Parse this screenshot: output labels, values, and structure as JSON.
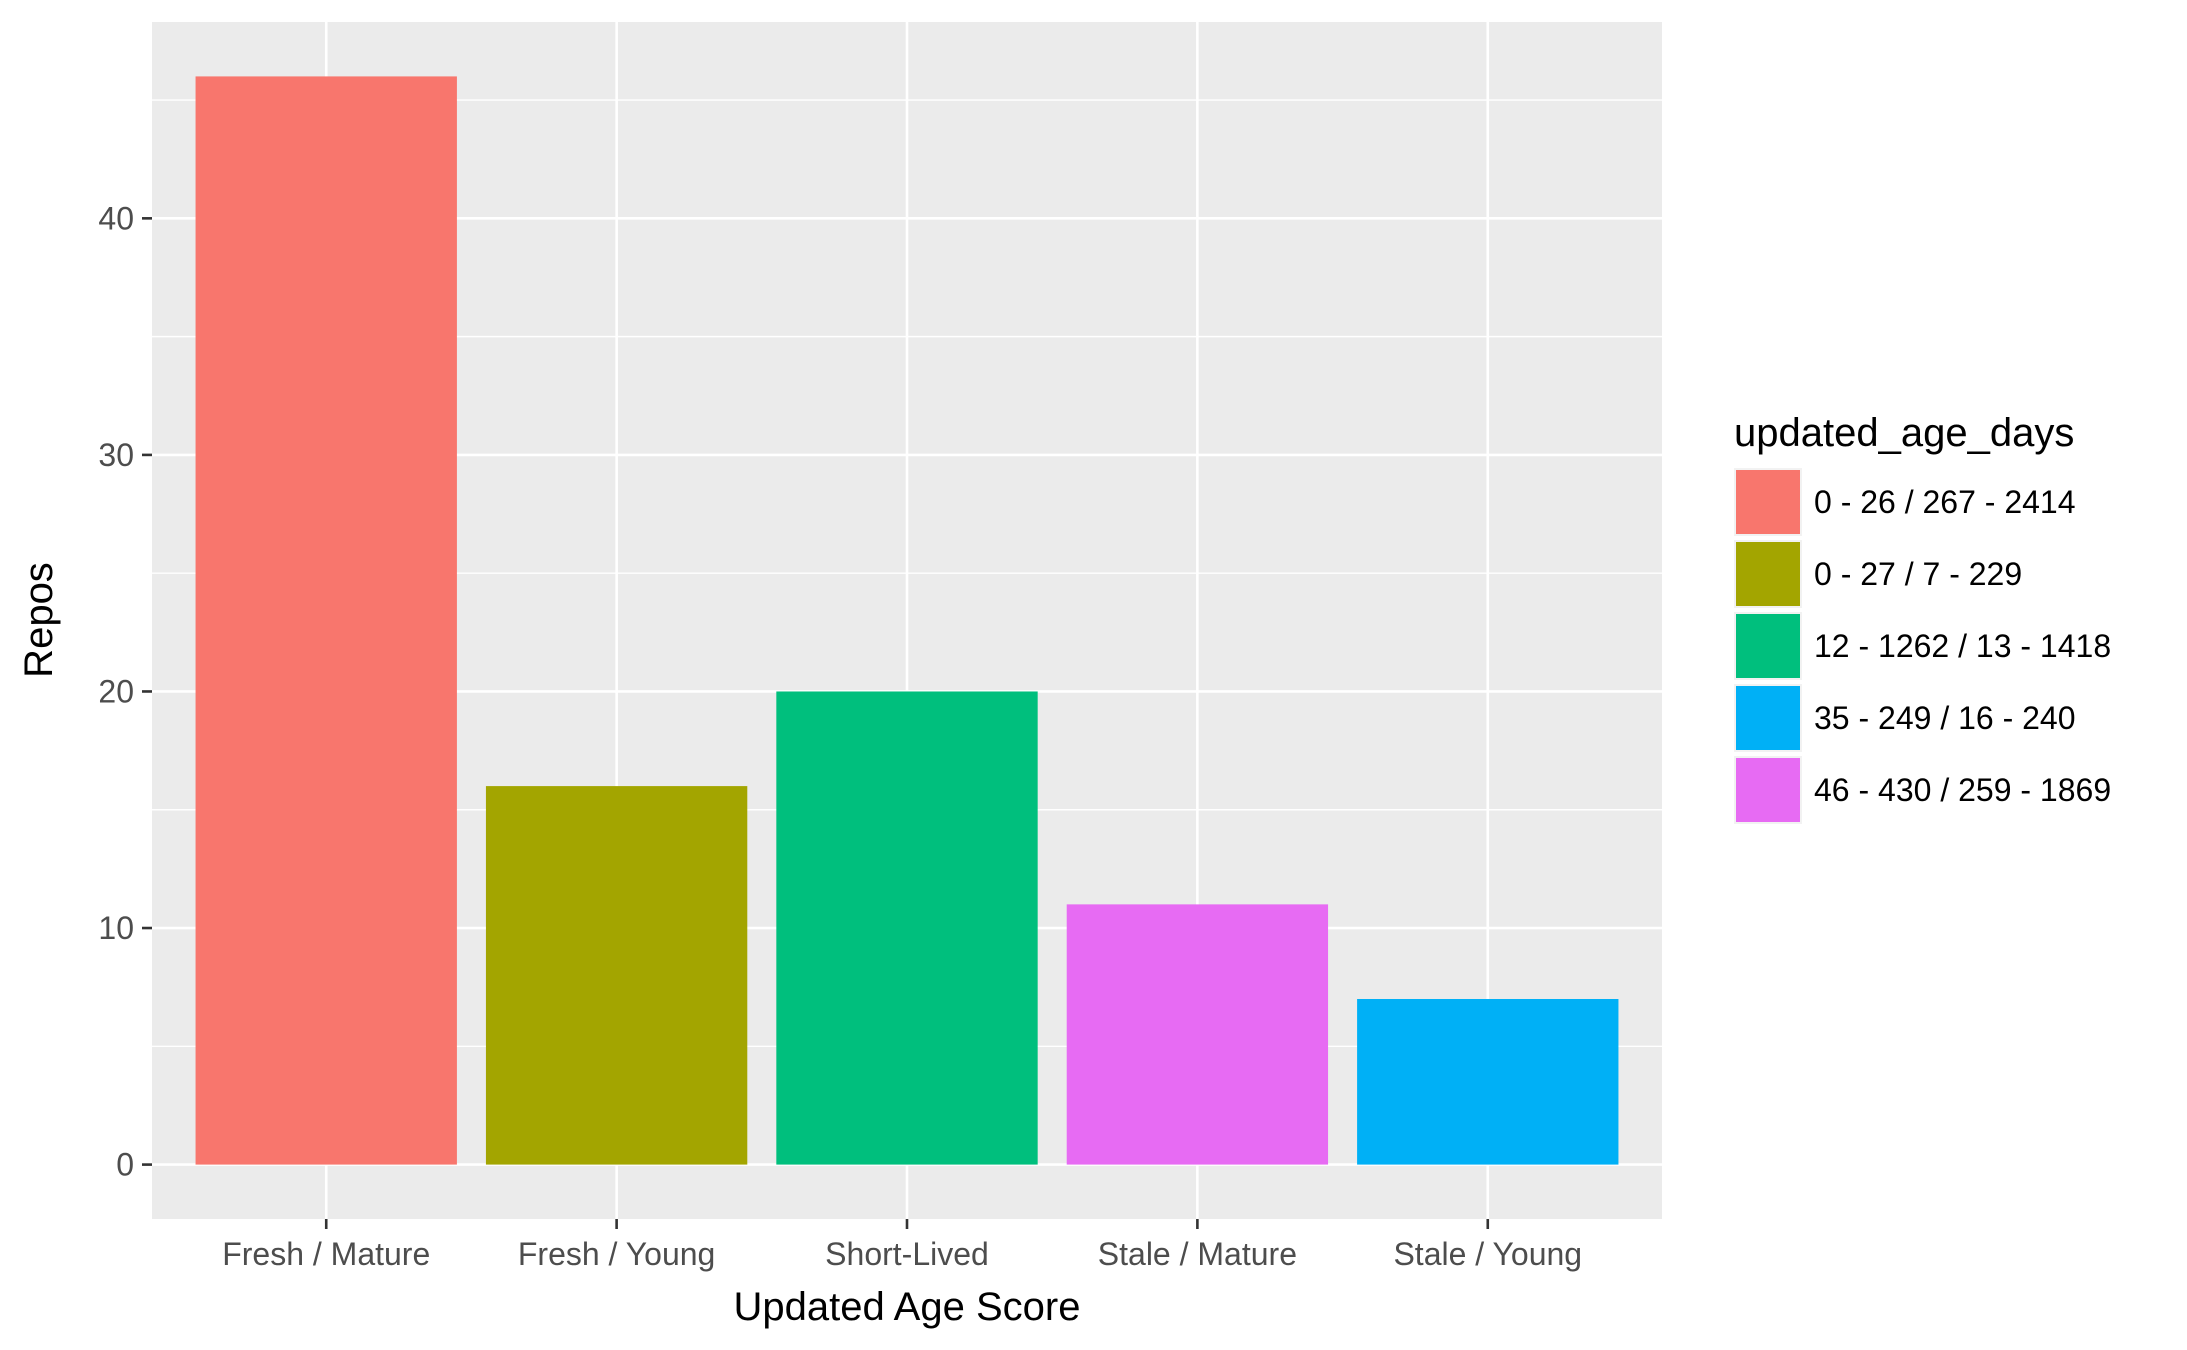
{
  "chart_data": {
    "type": "bar",
    "categories": [
      "Fresh / Mature",
      "Fresh / Young",
      "Short-Lived",
      "Stale / Mature",
      "Stale / Young"
    ],
    "values": [
      46,
      16,
      20,
      11,
      7
    ],
    "bar_fill_group": [
      "0 - 26 / 267 - 2414",
      "0 - 27 / 7 - 229",
      "12 - 1262 / 13 - 1418",
      "46 - 430 / 259 - 1869",
      "35 - 249 / 16 - 240"
    ],
    "xlabel": "Updated Age Score",
    "ylabel": "Repos",
    "ylim": [
      -2.3,
      48.3
    ],
    "yticks": [
      0,
      10,
      20,
      30,
      40
    ],
    "grid": true,
    "legend": {
      "title": "updated_age_days",
      "placement": "right",
      "entries": [
        {
          "label": "0 - 26 / 267 - 2414",
          "color": "#F8766D"
        },
        {
          "label": "0 - 27 / 7 - 229",
          "color": "#A3A500"
        },
        {
          "label": "12 - 1262 / 13 - 1418",
          "color": "#00BF7D"
        },
        {
          "label": "35 - 249 / 16 - 240",
          "color": "#00B0F6"
        },
        {
          "label": "46 - 430 / 259 - 1869",
          "color": "#E76BF3"
        }
      ]
    }
  }
}
